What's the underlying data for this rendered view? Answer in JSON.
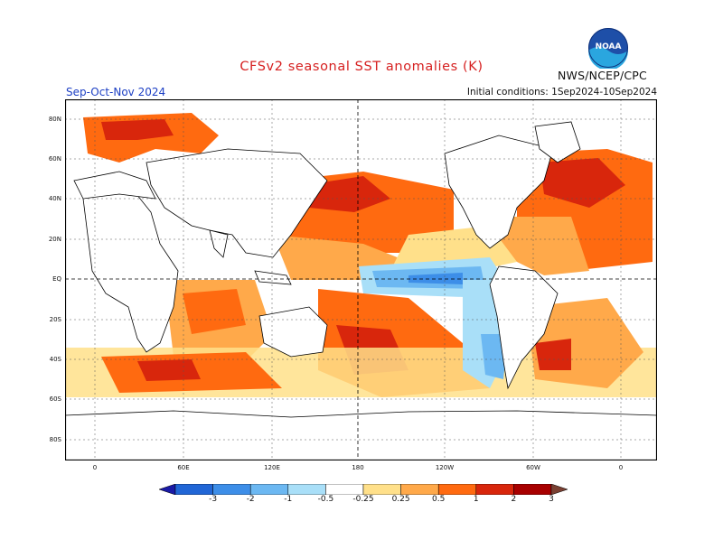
{
  "title": "CFSv2 seasonal SST anomalies (K)",
  "season": "Sep-Oct-Nov 2024",
  "initial_conditions": "Initial conditions: 1Sep2024-10Sep2024",
  "agency": "NWS/NCEP/CPC",
  "logo": {
    "icon": "noaa-logo-icon",
    "text": "NOAA"
  },
  "latitude_labels": [
    "80N",
    "60N",
    "40N",
    "20N",
    "EQ",
    "20S",
    "40S",
    "60S",
    "80S"
  ],
  "longitude_labels": [
    "0",
    "60E",
    "120E",
    "180",
    "120W",
    "60W",
    "0"
  ],
  "colorbar": {
    "tick_labels": [
      "-3",
      "-2",
      "-1",
      "-0.5",
      "-0.25",
      "0.25",
      "0.5",
      "1",
      "2",
      "3"
    ],
    "colors": [
      "#1a1aa6",
      "#2166d6",
      "#3d8ee8",
      "#6cb8f2",
      "#a9dff8",
      "#ffffff",
      "#ffe08a",
      "#ffa94a",
      "#ff6a10",
      "#d8260c",
      "#a80000",
      "#7a4032"
    ]
  },
  "colors": {
    "title": "#d62020",
    "season": "#1c3fc4"
  }
}
